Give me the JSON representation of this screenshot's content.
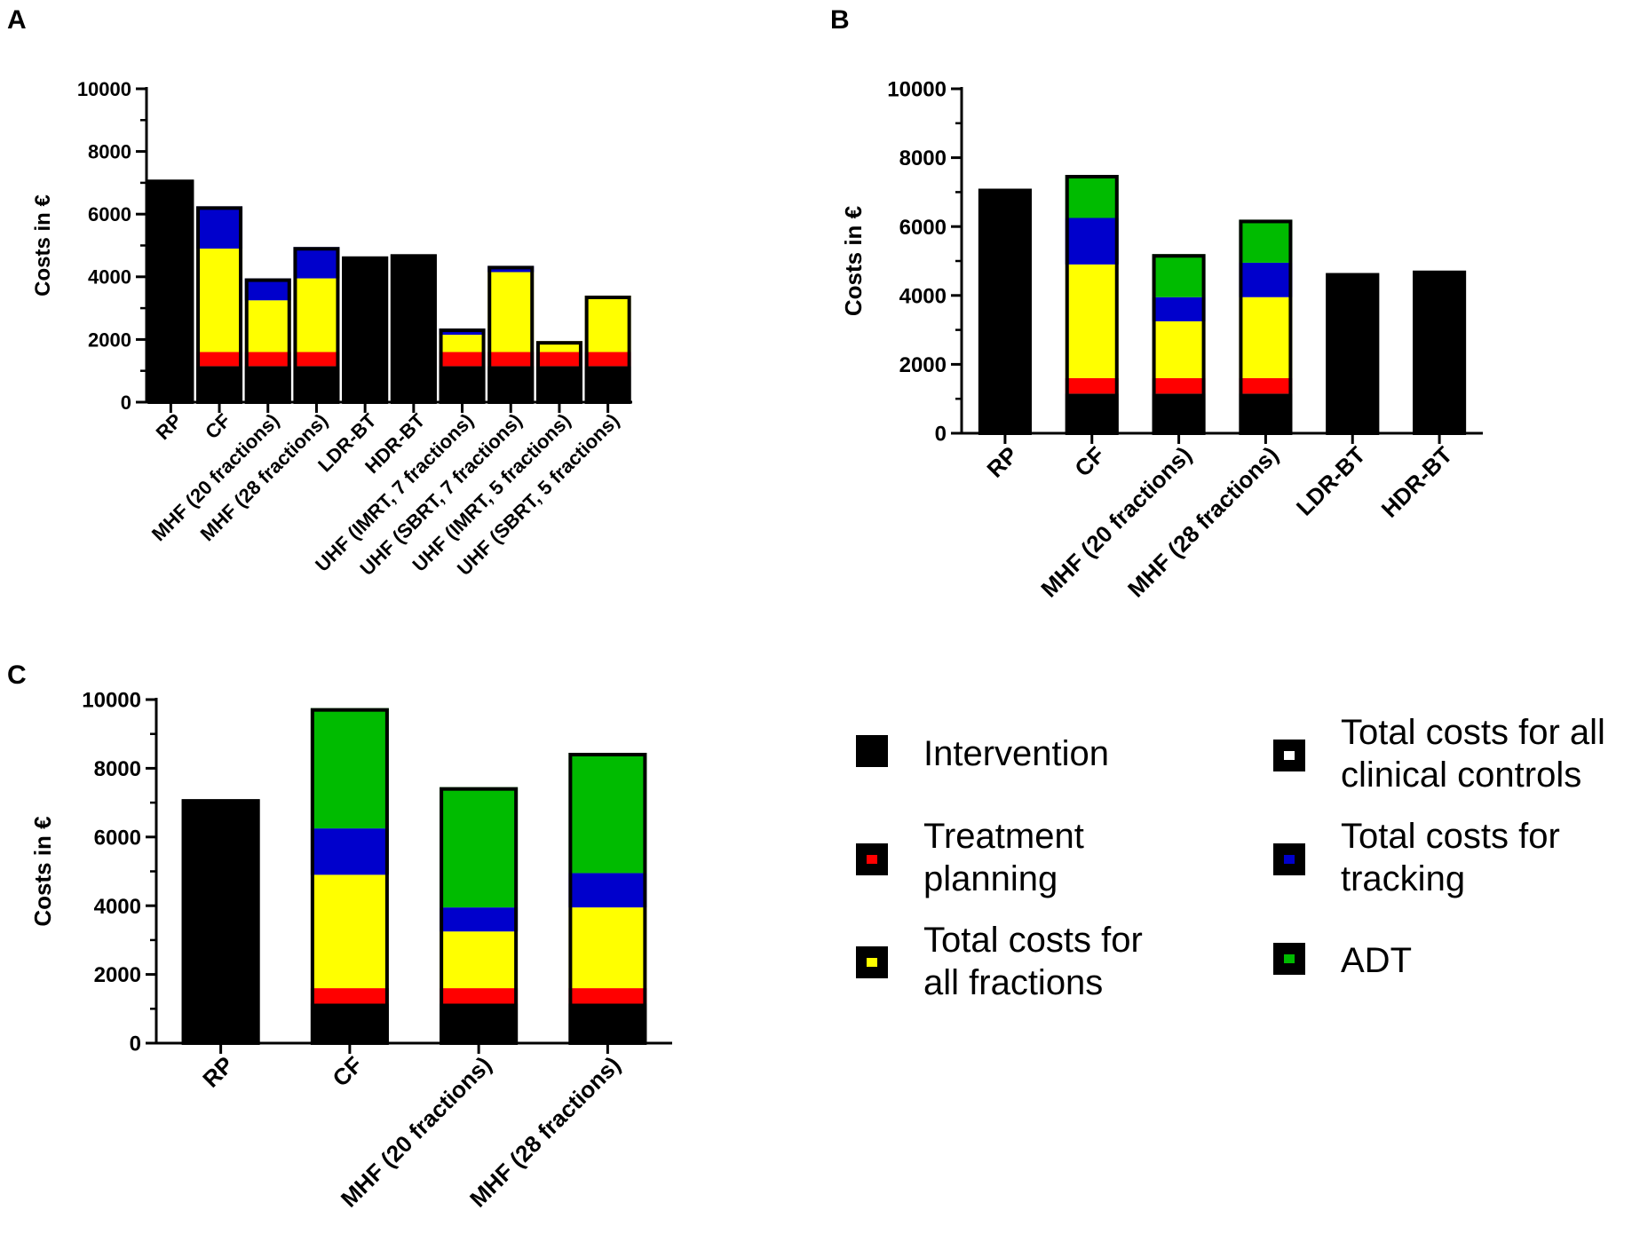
{
  "colors": {
    "intervention": "#000000",
    "planning": "#ff0000",
    "fractions": "#ffff00",
    "controls": "#ffffff",
    "tracking": "#0000cc",
    "adt": "#00bb00"
  },
  "legend": {
    "items": [
      {
        "key": "intervention",
        "lines": [
          "Intervention"
        ]
      },
      {
        "key": "planning",
        "lines": [
          "Treatment",
          "planning"
        ]
      },
      {
        "key": "fractions",
        "lines": [
          "Total costs for",
          "all fractions"
        ]
      },
      {
        "key": "controls",
        "lines": [
          "Total costs for all",
          "clinical controls"
        ]
      },
      {
        "key": "tracking",
        "lines": [
          "Total costs for",
          "tracking"
        ]
      },
      {
        "key": "adt",
        "lines": [
          "ADT"
        ]
      }
    ]
  },
  "chart_data": [
    {
      "panel": "A",
      "type": "bar",
      "stacked": true,
      "ylabel": "Costs in €",
      "ylim": [
        0,
        10000
      ],
      "yticks": [
        0,
        2000,
        4000,
        6000,
        8000,
        10000
      ],
      "categories": [
        "RP",
        "CF",
        "MHF (20 fractions)",
        "MHF (28 fractions)",
        "LDR-BT",
        "HDR-BT",
        "UHF (IMRT, 7 fractions)",
        "UHF (SBRT, 7 fractions)",
        "UHF (IMRT, 5 fractions)",
        "UHF (SBRT, 5 fractions)"
      ],
      "series": [
        {
          "name": "Intervention",
          "key": "intervention",
          "values": [
            7100,
            1150,
            1150,
            1150,
            4650,
            4720,
            1150,
            1150,
            1150,
            1150
          ]
        },
        {
          "name": "Treatment planning",
          "key": "planning",
          "values": [
            0,
            450,
            450,
            450,
            0,
            0,
            450,
            450,
            450,
            450
          ]
        },
        {
          "name": "Total costs for all fractions",
          "key": "fractions",
          "values": [
            0,
            3300,
            1650,
            2350,
            0,
            0,
            550,
            2550,
            350,
            1800
          ]
        },
        {
          "name": "Total costs for all clinical controls",
          "key": "controls",
          "values": [
            0,
            0,
            0,
            0,
            0,
            0,
            0,
            0,
            0,
            0
          ]
        },
        {
          "name": "Total costs for tracking",
          "key": "tracking",
          "values": [
            0,
            1350,
            700,
            1000,
            0,
            0,
            200,
            200,
            0,
            0
          ]
        },
        {
          "name": "ADT",
          "key": "adt",
          "values": [
            0,
            0,
            0,
            0,
            0,
            0,
            0,
            0,
            0,
            0
          ]
        }
      ]
    },
    {
      "panel": "B",
      "type": "bar",
      "stacked": true,
      "ylabel": "Costs in €",
      "ylim": [
        0,
        10000
      ],
      "yticks": [
        0,
        2000,
        4000,
        6000,
        8000,
        10000
      ],
      "categories": [
        "RP",
        "CF",
        "MHF (20 fractions)",
        "MHF (28 fractions)",
        "LDR-BT",
        "HDR-BT"
      ],
      "series": [
        {
          "name": "Intervention",
          "key": "intervention",
          "values": [
            7100,
            1150,
            1150,
            1150,
            4650,
            4720
          ]
        },
        {
          "name": "Treatment planning",
          "key": "planning",
          "values": [
            0,
            450,
            450,
            450,
            0,
            0
          ]
        },
        {
          "name": "Total costs for all fractions",
          "key": "fractions",
          "values": [
            0,
            3300,
            1650,
            2350,
            0,
            0
          ]
        },
        {
          "name": "Total costs for all clinical controls",
          "key": "controls",
          "values": [
            0,
            0,
            0,
            0,
            0,
            0
          ]
        },
        {
          "name": "Total costs for tracking",
          "key": "tracking",
          "values": [
            0,
            1350,
            700,
            1000,
            0,
            0
          ]
        },
        {
          "name": "ADT",
          "key": "adt",
          "values": [
            0,
            1250,
            1250,
            1250,
            0,
            0
          ]
        }
      ]
    },
    {
      "panel": "C",
      "type": "bar",
      "stacked": true,
      "ylabel": "Costs in €",
      "ylim": [
        0,
        10000
      ],
      "yticks": [
        0,
        2000,
        4000,
        6000,
        8000,
        10000
      ],
      "categories": [
        "RP",
        "CF",
        "MHF (20 fractions)",
        "MHF (28 fractions)"
      ],
      "series": [
        {
          "name": "Intervention",
          "key": "intervention",
          "values": [
            7100,
            1150,
            1150,
            1150
          ]
        },
        {
          "name": "Treatment planning",
          "key": "planning",
          "values": [
            0,
            450,
            450,
            450
          ]
        },
        {
          "name": "Total costs for all fractions",
          "key": "fractions",
          "values": [
            0,
            3300,
            1650,
            2350
          ]
        },
        {
          "name": "Total costs for all clinical controls",
          "key": "controls",
          "values": [
            0,
            0,
            0,
            0
          ]
        },
        {
          "name": "Total costs for tracking",
          "key": "tracking",
          "values": [
            0,
            1350,
            700,
            1000
          ]
        },
        {
          "name": "ADT",
          "key": "adt",
          "values": [
            0,
            3500,
            3500,
            3500
          ]
        }
      ]
    }
  ]
}
